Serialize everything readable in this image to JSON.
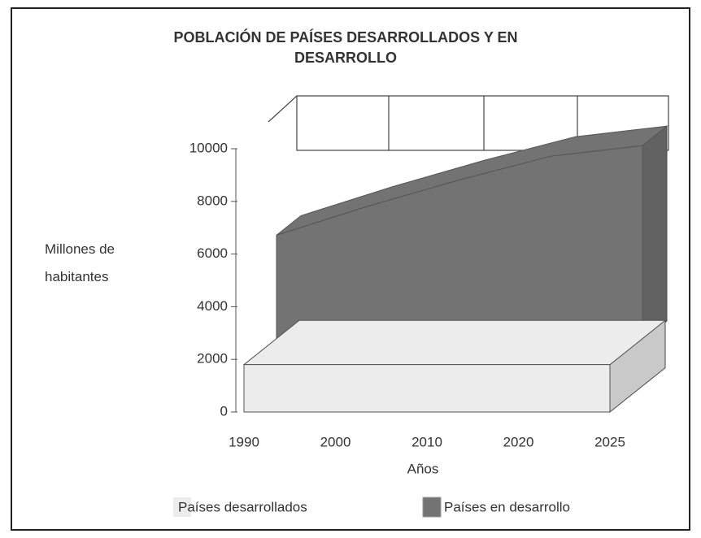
{
  "chart_data": {
    "type": "area3d",
    "title": "POBLACIÓN DE PAÍSES DESARROLLADOS Y EN DESARROLLO",
    "y_label": "Millones de habitantes",
    "x_label": "Años",
    "categories": [
      "1990",
      "2000",
      "2010",
      "2020",
      "2025"
    ],
    "series": [
      {
        "name": "Países desarrollados",
        "color": "#ececec",
        "values": [
          1800,
          1800,
          1800,
          1800,
          1800
        ]
      },
      {
        "name": "Países en desarrollo",
        "color": "#737373",
        "values": [
          4000,
          5100,
          6100,
          7000,
          7400
        ]
      }
    ],
    "ylim": [
      0,
      10000
    ],
    "yticks": [
      0,
      2000,
      4000,
      6000,
      8000,
      10000
    ]
  }
}
